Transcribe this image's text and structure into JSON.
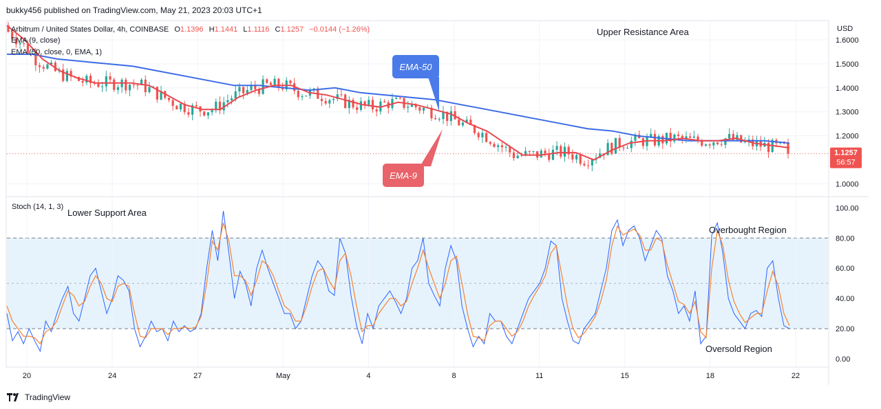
{
  "attribution": "bukky456 published on TradingView.com, May 21, 2023 20:03 UTC+1",
  "legend": {
    "symbol": "Arbitrum / United States Dollar, 4h, COINBASE",
    "o_label": "O",
    "o_value": "1.1396",
    "h_label": "H",
    "h_value": "1.1441",
    "l_label": "L",
    "l_value": "1.1116",
    "c_label": "C",
    "c_value": "1.1257",
    "change": "−0.0144 (−1.26%)",
    "ema9": "EMA (9, close)",
    "ema50": "EMA (50, close, 0, EMA, 1)",
    "stoch": "Stoch (14, 1, 3)"
  },
  "annotations": {
    "upper": "Upper Resistance Area",
    "lower": "Lower Support Area",
    "overbought": "Overbought Region",
    "oversold": "Oversold Region",
    "ema50_callout": "EMA-50",
    "ema9_callout": "EMA-9"
  },
  "price_axis": {
    "currency": "USD",
    "ticks": [
      "1.6000",
      "1.5000",
      "1.4000",
      "1.3000",
      "1.2000",
      "1.0000"
    ],
    "last_price": "1.1257",
    "countdown": "56:57"
  },
  "stoch_axis": {
    "ticks": [
      "100.00",
      "80.00",
      "60.00",
      "40.00",
      "20.00",
      "0.00"
    ]
  },
  "time_axis": [
    "20",
    "24",
    "27",
    "May",
    "4",
    "8",
    "11",
    "15",
    "18",
    "22"
  ],
  "footer": {
    "brand": "TradingView"
  },
  "colors": {
    "up": "#26a69a",
    "down": "#ef5350",
    "ema9": "#e8474e",
    "ema50": "#3c6be6",
    "stoch_k": "#2962ff",
    "stoch_d": "#f7812f",
    "band_fill": "#e3f2fd"
  },
  "chart_data": [
    {
      "type": "candlestick",
      "title": "Arbitrum / United States Dollar, 4h, COINBASE",
      "ylabel": "USD",
      "ylim": [
        0.95,
        1.68
      ],
      "x_ticks": [
        "20",
        "24",
        "27",
        "May",
        "4",
        "8",
        "11",
        "15",
        "18",
        "22"
      ],
      "last": {
        "open": 1.1396,
        "high": 1.1441,
        "low": 1.1116,
        "close": 1.1257,
        "change": -0.0144,
        "change_pct": -1.26
      },
      "series": [
        {
          "name": "EMA (9, close)",
          "values": [
            1.66,
            1.6,
            1.52,
            1.47,
            1.44,
            1.42,
            1.42,
            1.42,
            1.41,
            1.37,
            1.33,
            1.31,
            1.31,
            1.36,
            1.39,
            1.41,
            1.41,
            1.38,
            1.37,
            1.35,
            1.33,
            1.32,
            1.34,
            1.33,
            1.31,
            1.29,
            1.25,
            1.22,
            1.17,
            1.12,
            1.12,
            1.13,
            1.13,
            1.1,
            1.14,
            1.17,
            1.18,
            1.18,
            1.19,
            1.18,
            1.18,
            1.19,
            1.17,
            1.16,
            1.15
          ]
        },
        {
          "name": "EMA (50, close, 0, EMA, 1)",
          "values": [
            1.54,
            1.54,
            1.52,
            1.51,
            1.5,
            1.49,
            1.47,
            1.45,
            1.43,
            1.41,
            1.41,
            1.4,
            1.39,
            1.4,
            1.38,
            1.37,
            1.36,
            1.35,
            1.33,
            1.31,
            1.29,
            1.27,
            1.25,
            1.23,
            1.22,
            1.2,
            1.19,
            1.18,
            1.18,
            1.18,
            1.18,
            1.17
          ]
        }
      ]
    },
    {
      "type": "line",
      "title": "Stoch (14, 1, 3)",
      "ylim": [
        -5,
        107
      ],
      "bands": {
        "upper": 80,
        "middle": 50,
        "lower": 20
      },
      "series": [
        {
          "name": "%K",
          "values": [
            30,
            12,
            18,
            10,
            20,
            12,
            5,
            25,
            18,
            30,
            40,
            48,
            30,
            25,
            40,
            55,
            60,
            45,
            30,
            40,
            55,
            52,
            45,
            20,
            8,
            15,
            25,
            18,
            20,
            12,
            25,
            18,
            22,
            18,
            20,
            30,
            60,
            85,
            65,
            98,
            70,
            40,
            58,
            50,
            35,
            60,
            72,
            60,
            50,
            40,
            30,
            30,
            20,
            25,
            40,
            55,
            65,
            60,
            45,
            42,
            80,
            70,
            42,
            22,
            10,
            30,
            20,
            35,
            40,
            45,
            38,
            30,
            40,
            60,
            65,
            80,
            50,
            42,
            35,
            60,
            75,
            65,
            35,
            20,
            8,
            15,
            10,
            30,
            25,
            25,
            15,
            10,
            20,
            30,
            40,
            45,
            50,
            60,
            78,
            75,
            40,
            25,
            12,
            10,
            20,
            25,
            30,
            45,
            60,
            85,
            92,
            75,
            85,
            88,
            80,
            65,
            75,
            85,
            80,
            55,
            45,
            30,
            35,
            25,
            45,
            10,
            15,
            82,
            90,
            70,
            40,
            30,
            25,
            20,
            30,
            32,
            28,
            60,
            65,
            40,
            22,
            20
          ]
        },
        {
          "name": "%D",
          "values": [
            35,
            25,
            20,
            15,
            15,
            14,
            10,
            18,
            20,
            25,
            35,
            45,
            42,
            35,
            38,
            48,
            55,
            50,
            40,
            38,
            48,
            50,
            48,
            30,
            15,
            14,
            20,
            20,
            20,
            16,
            20,
            20,
            21,
            20,
            21,
            28,
            50,
            78,
            72,
            90,
            78,
            55,
            55,
            52,
            42,
            52,
            65,
            62,
            55,
            45,
            35,
            32,
            25,
            25,
            35,
            48,
            58,
            60,
            52,
            46,
            65,
            70,
            55,
            35,
            18,
            22,
            22,
            30,
            35,
            40,
            40,
            35,
            38,
            50,
            60,
            72,
            60,
            50,
            40,
            50,
            65,
            68,
            50,
            30,
            15,
            14,
            12,
            22,
            25,
            25,
            20,
            15,
            18,
            25,
            35,
            42,
            48,
            55,
            70,
            75,
            55,
            35,
            20,
            14,
            17,
            22,
            28,
            38,
            52,
            75,
            88,
            82,
            84,
            86,
            82,
            72,
            72,
            80,
            78,
            62,
            50,
            38,
            36,
            30,
            38,
            18,
            14,
            60,
            85,
            75,
            52,
            38,
            30,
            24,
            27,
            30,
            30,
            45,
            58,
            48,
            30,
            22
          ]
        }
      ]
    }
  ]
}
